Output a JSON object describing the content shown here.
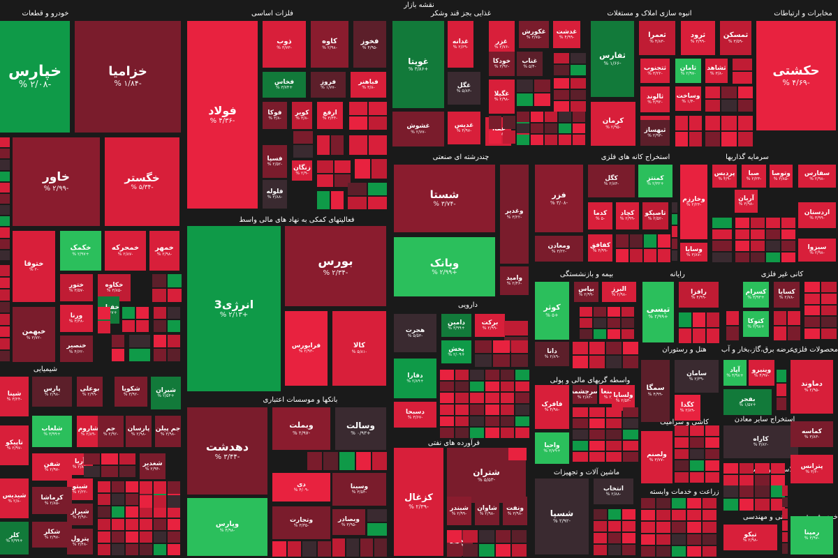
{
  "title": "نقشه بازار",
  "colors": {
    "background": "#1a1a1a",
    "strong_red": "#d81f3a",
    "red": "#e8223f",
    "dark_red": "#7a1c2c",
    "maroon": "#5c1f2a",
    "gray": "#3a2a30",
    "strong_green": "#0f9a48",
    "green": "#2bbf5c",
    "dark_green": "#127a3a"
  },
  "sectors": [
    "خودرو و قطعات",
    "فلزات اساسی",
    "غذایی بجز قند وشکر",
    "انبوه سازی املاک و مستغلات",
    "مخابرات و ارتباطات",
    "چندرشته ای صنعتی",
    "استخراج کانه های فلزی",
    "سرمایه گذاریها",
    "فعالیتهای کمکی به نهاد های مالی واسط",
    "دارویی",
    "بیمه و بازنشستگی",
    "رایانه",
    "کانی غیر فلزی",
    "شیمیایی",
    "بانکها و موسسات اعتباری",
    "هتل و رستوران",
    "عرضه برق،گاز،بخار و آب",
    "محصولات فلزی",
    "واسطه گریهای مالی و پولی",
    "کاشی و سرامیک",
    "استخراج سایر معادن",
    "لاستیک و پلاستیک",
    "فرآورده های نفتی",
    "ماشین آلات و تجهیزات",
    "زراعت و خدمات وابسته",
    "فنی و مهندسی",
    "خرده فروشی"
  ],
  "tiles": [
    {
      "name": "خپارس",
      "change": "-۲/۰۸ %",
      "color": "#0f9a48"
    },
    {
      "name": "خزامیا",
      "change": "-۱/۸۴ %",
      "color": "#7a1c2c"
    },
    {
      "name": "خاور",
      "change": "-۲/۹۹ %",
      "color": "#8a1c2e"
    },
    {
      "name": "خگستر",
      "change": "-۵/۳۴ %",
      "color": "#d81f3a"
    },
    {
      "name": "ختوقا",
      "change": "-۲ %",
      "color": "#d81f3a"
    },
    {
      "name": "خکمک",
      "change": "+۲/۹۷ %",
      "color": "#2bbf5c"
    },
    {
      "name": "خمحرکه",
      "change": "-۲/۸۷ %",
      "color": "#d81f3a"
    },
    {
      "name": "خمهر",
      "change": "-۲/۹۸ %",
      "color": "#d81f3a"
    },
    {
      "name": "ختور",
      "change": "-۳/۵۷ %",
      "color": "#c01c34"
    },
    {
      "name": "خکاوه",
      "change": "-۳/۸۵ %",
      "color": "#c01c34"
    },
    {
      "name": "خفناور",
      "change": "+۲/۶۷ %",
      "color": "#127a3a"
    },
    {
      "name": "ورنا",
      "change": "-۳/۳۸ %",
      "color": "#d81f3a"
    },
    {
      "name": "خبهمن",
      "change": "-۳/۷۲ %",
      "color": "#7a1c2c"
    },
    {
      "name": "خنصیر",
      "change": "-۴/۶۲ %",
      "color": "#7a1c2c"
    },
    {
      "name": "فولاد",
      "change": "-۴/۳۶ %",
      "color": "#e8223f"
    },
    {
      "name": "ذوب",
      "change": "-۳/۷۳ %",
      "color": "#d81f3a"
    },
    {
      "name": "کاوه",
      "change": "-۲/۹۸ %",
      "color": "#8a1c2e"
    },
    {
      "name": "فخوز",
      "change": "-۴/۹۵ %",
      "color": "#5c1f2a"
    },
    {
      "name": "فخاس",
      "change": "+۳/۷۴ %",
      "color": "#127a3a"
    },
    {
      "name": "فروز",
      "change": "-۱/۷۷ %",
      "color": "#5c1f2a"
    },
    {
      "name": "فباهنر",
      "change": "-۳/۸ %",
      "color": "#d81f3a"
    },
    {
      "name": "فوکا",
      "change": "-۳/۸ %",
      "color": "#7a1c2c"
    },
    {
      "name": "کویر",
      "change": "-۳/۸ %",
      "color": "#c01c34"
    },
    {
      "name": "فسپا",
      "change": "-۲/۵۲ %",
      "color": "#7a1c2c"
    },
    {
      "name": "زنگان",
      "change": "-۲/۹ %",
      "color": "#d81f3a"
    },
    {
      "name": "ارفع",
      "change": "-۳/۴۴ %",
      "color": "#d81f3a"
    },
    {
      "name": "فلوله",
      "change": "-۳/۸۸ %",
      "color": "#3a2a30"
    },
    {
      "name": "غویتا",
      "change": "+۳/۸۶ %",
      "color": "#127a3a"
    },
    {
      "name": "غدانه",
      "change": "-۲/۶۹ %",
      "color": "#d81f3a"
    },
    {
      "name": "غزر",
      "change": "-۲/۷۶ %",
      "color": "#d81f3a"
    },
    {
      "name": "غکورش",
      "change": "-۳/۷۵ %",
      "color": "#7a1c2c"
    },
    {
      "name": "غدشت",
      "change": "-۴/۹۹ %",
      "color": "#d81f3a"
    },
    {
      "name": "خودکا",
      "change": "-۳/۹۲ %",
      "color": "#7a1c2c"
    },
    {
      "name": "غناب",
      "change": "-۵/۴ %",
      "color": "#5c1f2a"
    },
    {
      "name": "غگل",
      "change": "-۵/۸۳ %",
      "color": "#3a2a30"
    },
    {
      "name": "غگیلا",
      "change": "-۲/۹۸ %",
      "color": "#d81f3a"
    },
    {
      "name": "غشوش",
      "change": "-۲/۷۷ %",
      "color": "#7a1c2c"
    },
    {
      "name": "غدیس",
      "change": "-۴/۹۷ %",
      "color": "#d81f3a"
    },
    {
      "name": "غفار",
      "change": "-۲/۵۳ %",
      "color": "#d81f3a"
    },
    {
      "name": "ثفارس",
      "change": "-۱/۶۶ %",
      "color": "#127a3a"
    },
    {
      "name": "ثعمرا",
      "change": "-۴/۸۳ %",
      "color": "#c01c34"
    },
    {
      "name": "ثرود",
      "change": "-۳/۹۹ %",
      "color": "#d81f3a"
    },
    {
      "name": "ثمسکن",
      "change": "-۳/۵۹ %",
      "color": "#c01c34"
    },
    {
      "name": "ثامان",
      "change": "-۲/۹۷ %",
      "color": "#2bbf5c"
    },
    {
      "name": "ثشاهد",
      "change": "-۳/۸ %",
      "color": "#d81f3a"
    },
    {
      "name": "ثتجنوب",
      "change": "-۳/۲۲ %",
      "color": "#d81f3a"
    },
    {
      "name": "وساخت",
      "change": "-۱/۴ %",
      "color": "#d81f3a"
    },
    {
      "name": "ثالوند",
      "change": "-۴/۹۲ %",
      "color": "#d81f3a"
    },
    {
      "name": "ثاصفا",
      "change": "-۴/۷ %",
      "color": "#d81f3a"
    },
    {
      "name": "کرمان",
      "change": "-۲/۹۵ %",
      "color": "#d81f3a"
    },
    {
      "name": "ثبهساز",
      "change": "-۲/۹۳ %",
      "color": "#5c1f2a"
    },
    {
      "name": "حکشتی",
      "change": "-۴/۶۹ %",
      "color": "#e8223f"
    },
    {
      "name": "شستا",
      "change": "-۳/۷۴ %",
      "color": "#8a1c2e"
    },
    {
      "name": "وغدیر",
      "change": "-۳/۲۲ %",
      "color": "#7a1c2c"
    },
    {
      "name": "وبانک",
      "change": "+۲/۹۹ %",
      "color": "#2bbf5c"
    },
    {
      "name": "وامید",
      "change": "-۲/۴۶ %",
      "color": "#7a1c2c"
    },
    {
      "name": "کگل",
      "change": "-۲/۸۳ %",
      "color": "#7a1c2c"
    },
    {
      "name": "کمنتز",
      "change": "+۲/۳۲ %",
      "color": "#2bbf5c"
    },
    {
      "name": "فزر",
      "change": "-۳/۰۸ %",
      "color": "#8a1c2e"
    },
    {
      "name": "کدما",
      "change": "-۵ %",
      "color": "#d81f3a"
    },
    {
      "name": "کچاد",
      "change": "-۲/۹۹ %",
      "color": "#d81f3a"
    },
    {
      "name": "تاصیکو",
      "change": "-۲/۵۲ %",
      "color": "#c01c34"
    },
    {
      "name": "ومعادن",
      "change": "-۳/۲۲ %",
      "color": "#7a1c2c"
    },
    {
      "name": "کفافق",
      "change": "-۴/۹۹ %",
      "color": "#d81f3a"
    },
    {
      "name": "پردیس",
      "change": "-۴/۹ %",
      "color": "#d81f3a"
    },
    {
      "name": "صبا",
      "change": "-۲/۲۳ %",
      "color": "#d81f3a"
    },
    {
      "name": "وتوصا",
      "change": "-۳/۸۵ %",
      "color": "#d81f3a"
    },
    {
      "name": "وخارزم",
      "change": "-۲/۲۳ %",
      "color": "#e8223f"
    },
    {
      "name": "آریان",
      "change": "-۳/۹۸ %",
      "color": "#d81f3a"
    },
    {
      "name": "وسایا",
      "change": "-۳/۸۷ %",
      "color": "#d81f3a"
    },
    {
      "name": "سفارس",
      "change": "-۲/۹۸ %",
      "color": "#d81f3a"
    },
    {
      "name": "اردستان",
      "change": "-۳/۹۹ %",
      "color": "#d81f3a"
    },
    {
      "name": "سیزوا",
      "change": "-۲/۹۸ %",
      "color": "#d81f3a"
    },
    {
      "name": "انرژی3",
      "change": "+۲/۱۳ %",
      "color": "#0f9a48"
    },
    {
      "name": "بورس",
      "change": "-۲/۳۴ %",
      "color": "#8a1c2e"
    },
    {
      "name": "فرابورس",
      "change": "-۲/۹۳ %",
      "color": "#e8223f"
    },
    {
      "name": "کالا",
      "change": "-۵/۸۱ %",
      "color": "#d81f3a"
    },
    {
      "name": "هجرت",
      "change": "-۵/۵۳ %",
      "color": "#3a2a30"
    },
    {
      "name": "دامین",
      "change": "+۳/۹۹ %",
      "color": "#127a3a"
    },
    {
      "name": "برکت",
      "change": "-۲/۹۹ %",
      "color": "#d81f3a"
    },
    {
      "name": "پخش",
      "change": "+۲/۰۹ %",
      "color": "#0f9a48"
    },
    {
      "name": "دفارا",
      "change": "+۲/۸۹ %",
      "color": "#0f9a48"
    },
    {
      "name": "دسبحا",
      "change": "-۳/۶۷ %",
      "color": "#d81f3a"
    },
    {
      "name": "کوثر",
      "change": "+۵ %",
      "color": "#2bbf5c"
    },
    {
      "name": "بپاس",
      "change": "-۲/۹۹ %",
      "color": "#7a1c2c"
    },
    {
      "name": "البرز",
      "change": "-۲/۹۸ %",
      "color": "#d81f3a"
    },
    {
      "name": "دانا",
      "change": "-۲/۸۹ %",
      "color": "#5c1f2a"
    },
    {
      "name": "رافزا",
      "change": "-۴/۹۹ %",
      "color": "#c01c34"
    },
    {
      "name": "تپسی",
      "change": "+۲/۹۹ %",
      "color": "#2bbf5c"
    },
    {
      "name": "کسرام",
      "change": "+۳/۹۳ %",
      "color": "#2bbf5c"
    },
    {
      "name": "کسایا",
      "change": "-۲/۷۸ %",
      "color": "#7a1c2c"
    },
    {
      "name": "کتوکا",
      "change": "+۳/۹۸ %",
      "color": "#2bbf5c"
    },
    {
      "name": "شپنا",
      "change": "-۳/۲۴ %",
      "color": "#d81f3a"
    },
    {
      "name": "تاپیکو",
      "change": "-۲/۹۷ %",
      "color": "#d81f3a"
    },
    {
      "name": "شیدیس",
      "change": "-۲/۸ %",
      "color": "#d81f3a"
    },
    {
      "name": "کلر",
      "change": "+۳/۹۹ %",
      "color": "#127a3a"
    },
    {
      "name": "پارس",
      "change": "-۲/۹۸ %",
      "color": "#5c1f2a"
    },
    {
      "name": "بوعلی",
      "change": "-۲/۹۹ %",
      "color": "#7a1c2c"
    },
    {
      "name": "شکویا",
      "change": "-۳/۹۲ %",
      "color": "#7a1c2c"
    },
    {
      "name": "شیران",
      "change": "+۲/۵۴ %",
      "color": "#127a3a"
    },
    {
      "name": "شلعاب",
      "change": "+۳/۹۹ %",
      "color": "#2bbf5c"
    },
    {
      "name": "شاروم",
      "change": "-۲/۸۹ %",
      "color": "#d81f3a"
    },
    {
      "name": "جم",
      "change": "-۲/۹۲ %",
      "color": "#7a1c2c"
    },
    {
      "name": "پارسان",
      "change": "-۲/۹۸ %",
      "color": "#7a1c2c"
    },
    {
      "name": "جم پیلن",
      "change": "-۳/۹۸ %",
      "color": "#7a1c2c"
    },
    {
      "name": "شفن",
      "change": "-۲/۹۷ %",
      "color": "#d81f3a"
    },
    {
      "name": "آریا",
      "change": "-۲/۸۸ %",
      "color": "#d81f3a"
    },
    {
      "name": "شغدیر",
      "change": "-۲/۹۴ %",
      "color": "#7a1c2c"
    },
    {
      "name": "شیتو",
      "change": "-۲/۲۲ %",
      "color": "#d81f3a"
    },
    {
      "name": "کرماشا",
      "change": "-۲/۸۵ %",
      "color": "#7a1c2c"
    },
    {
      "name": "شیراز",
      "change": "-۳/۹۶ %",
      "color": "#7a1c2c"
    },
    {
      "name": "شکلر",
      "change": "-۲/۹۷ %",
      "color": "#7a1c2c"
    },
    {
      "name": "پترول",
      "change": "-۳/۴۸ %",
      "color": "#7a1c2c"
    },
    {
      "name": "دهدشت",
      "change": "-۳/۴۴ %",
      "color": "#7a1c2c"
    },
    {
      "name": "وبملت",
      "change": "-۲/۹۷ %",
      "color": "#8a1c2e"
    },
    {
      "name": "وسالت",
      "change": "+۰/۹۳ %",
      "color": "#3a2a30"
    },
    {
      "name": "دی",
      "change": "-۴/۰۹ %",
      "color": "#e8223f"
    },
    {
      "name": "وسینا",
      "change": "-۳/۵۴ %",
      "color": "#7a1c2c"
    },
    {
      "name": "وپارس",
      "change": "-۴/۹۸ %",
      "color": "#2bbf5c"
    },
    {
      "name": "وتجارت",
      "change": "-۳/۳۵ %",
      "color": "#7a1c2c"
    },
    {
      "name": "وبصادر",
      "change": "-۳/۹۵ %",
      "color": "#7a1c2c"
    },
    {
      "name": "سامان",
      "change": "-۲/۳۹ %",
      "color": "#3a2a30"
    },
    {
      "name": "سمگا",
      "change": "-۴/۹۹ %",
      "color": "#5c1f2a"
    },
    {
      "name": "کگدا",
      "change": "-۲/۸۹ %",
      "color": "#e8223f"
    },
    {
      "name": "آپاد",
      "change": "+۴/۹۸ %",
      "color": "#2bbf5c"
    },
    {
      "name": "وینیرو",
      "change": "-۴/۹۷ %",
      "color": "#d81f3a"
    },
    {
      "name": "بفجر",
      "change": "+۱/۵۷ %",
      "color": "#127a3a"
    },
    {
      "name": "دماوند",
      "change": "-۲/۹۵ %",
      "color": "#d81f3a"
    },
    {
      "name": "فافرک",
      "change": "-۴/۹۸ %",
      "color": "#d81f3a"
    },
    {
      "name": "سرچشمه",
      "change": "-۲/۸۲ %",
      "color": "#7a1c2c"
    },
    {
      "name": "ولصنعا",
      "change": "-۲/۹۹ %",
      "color": "#d81f3a"
    },
    {
      "name": "ولساپا",
      "change": "-۲/۵۳ %",
      "color": "#d81f3a"
    },
    {
      "name": "واحیا",
      "change": "+۳/۷۹ %",
      "color": "#2bbf5c"
    },
    {
      "name": "ولصنم",
      "change": "-۳/۷۷ %",
      "color": "#d81f3a"
    },
    {
      "name": "کاراه",
      "change": "-۳/۸۲ %",
      "color": "#3a2a30"
    },
    {
      "name": "کماسه",
      "change": "-۳/۸۳ %",
      "color": "#7a1c2c"
    },
    {
      "name": "پترانس",
      "change": "-۳/۶ %",
      "color": "#d81f3a"
    },
    {
      "name": "کزغال",
      "change": "-۲/۳۹ %",
      "color": "#d81f3a"
    },
    {
      "name": "شتران",
      "change": "-۵/۵۳ %",
      "color": "#7a1c2c"
    },
    {
      "name": "شبندر",
      "change": "-۲/۹۹ %",
      "color": "#8a1c2e"
    },
    {
      "name": "شاوان",
      "change": "-۲/۹۸ %",
      "color": "#7a1c2c"
    },
    {
      "name": "ونفت",
      "change": "-۳/۹۸ %",
      "color": "#7a1c2c"
    },
    {
      "name": "شبریز",
      "change": "-۳/۹۳ %",
      "color": "#7a1c2c"
    },
    {
      "name": "شسپا",
      "change": "-۲/۹۲ %",
      "color": "#3a2a30"
    },
    {
      "name": "انتخاب",
      "change": "-۲/۸۸ %",
      "color": "#3a2a30"
    },
    {
      "name": "تیکو",
      "change": "-۲/۹۸ %",
      "color": "#d81f3a"
    },
    {
      "name": "رمپنا",
      "change": "-۳/۹۷ %",
      "color": "#2bbf5c"
    },
    {
      "name": "بالاس",
      "change": "-۳/۸۱ %",
      "color": "#5c1f2a"
    }
  ],
  "filler_colors": [
    "#d81f3a",
    "#c01c34",
    "#e8223f",
    "#7a1c2c",
    "#5c1f2a",
    "#d81f3a",
    "#3a2a30",
    "#c01c34",
    "#e8223f",
    "#0f9a48",
    "#d81f3a",
    "#7a1c2c"
  ]
}
